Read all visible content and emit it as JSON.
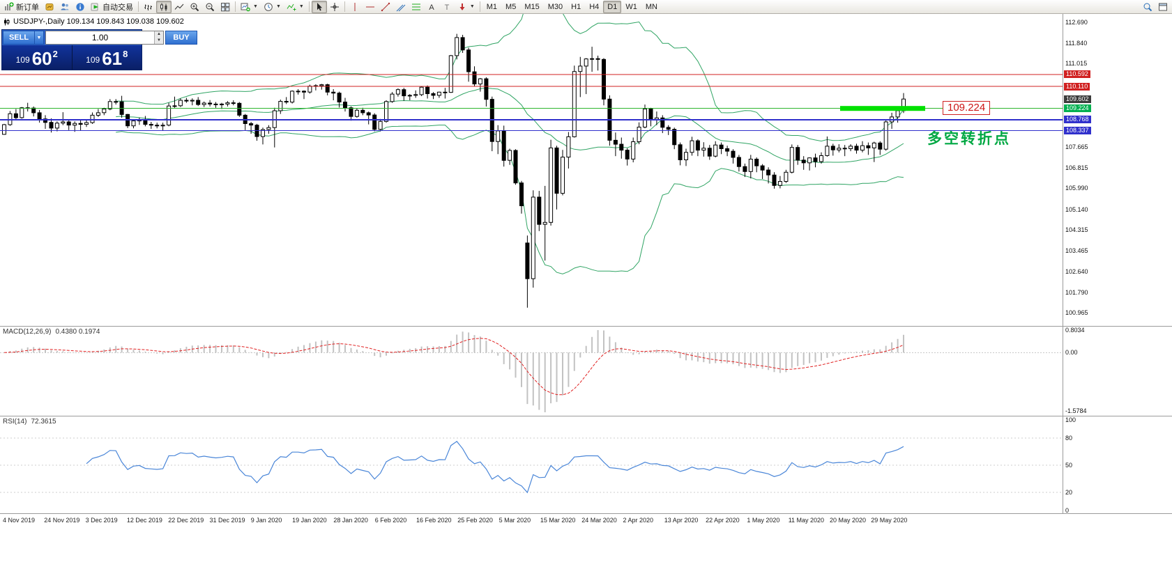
{
  "toolbar": {
    "new_order_label": "新订单",
    "autotrade_label": "自动交易",
    "timeframes": [
      "M1",
      "M5",
      "M15",
      "M30",
      "H1",
      "H4",
      "D1",
      "W1",
      "MN"
    ],
    "active_timeframe": "D1"
  },
  "symbol_bar": {
    "text": "USDJPY-,Daily 109.134 109.843 109.038 109.602"
  },
  "trade_panel": {
    "sell_label": "SELL",
    "buy_label": "BUY",
    "volume": "1.00",
    "sell_price_small": "109",
    "sell_price_big": "60",
    "sell_price_sup": "2",
    "buy_price_small": "109",
    "buy_price_big": "61",
    "buy_price_sup": "8"
  },
  "price_scale": {
    "ticks": [
      "112.690",
      "111.840",
      "111.015",
      "107.665",
      "106.815",
      "105.990",
      "105.140",
      "104.315",
      "103.465",
      "102.640",
      "101.790",
      "100.965"
    ],
    "tags": [
      {
        "text": "110.592",
        "color": "#d02020"
      },
      {
        "text": "110.110",
        "color": "#d02020"
      },
      {
        "text": "109.602",
        "color": "#3c3c3c"
      },
      {
        "text": "109.224",
        "color": "#00b050"
      },
      {
        "text": "108.768",
        "color": "#3030cc"
      },
      {
        "text": "108.337",
        "color": "#3030cc"
      }
    ]
  },
  "hlines": [
    {
      "price": 110.592,
      "color": "#d02020",
      "width": 1
    },
    {
      "price": 110.11,
      "color": "#d02020",
      "width": 1
    },
    {
      "price": 109.224,
      "color": "#2db52d",
      "width": 1
    },
    {
      "price": 108.768,
      "color": "#3030cc",
      "width": 2
    },
    {
      "price": 108.337,
      "color": "#3030cc",
      "width": 1
    }
  ],
  "annotations": {
    "segment_price": 109.224,
    "segment_color": "#00e100",
    "price_label": "109.224",
    "note": "多空转折点"
  },
  "indicators": {
    "macd": {
      "label": "MACD(12,26,9)",
      "values": "0.4380 0.1974",
      "scale_top": "0.8034",
      "scale_zero": "0.00",
      "scale_bottom": "-1.5784"
    },
    "rsi": {
      "label": "RSI(14)",
      "value": "72.3615",
      "scale": [
        "100",
        "80",
        "50",
        "20",
        "0"
      ]
    }
  },
  "time_axis": {
    "labels": [
      "4 Nov 2019",
      "24 Nov 2019",
      "3 Dec 2019",
      "12 Dec 2019",
      "22 Dec 2019",
      "31 Dec 2019",
      "9 Jan 2020",
      "19 Jan 2020",
      "28 Jan 2020",
      "6 Feb 2020",
      "16 Feb 2020",
      "25 Feb 2020",
      "5 Mar 2020",
      "15 Mar 2020",
      "24 Mar 2020",
      "2 Apr 2020",
      "13 Apr 2020",
      "22 Apr 2020",
      "1 May 2020",
      "11 May 2020",
      "20 May 2020",
      "29 May 2020"
    ]
  },
  "chart_data": {
    "type": "candlestick",
    "symbol": "USDJPY-",
    "timeframe": "Daily",
    "overlays": {
      "bollinger_period": 20,
      "bollinger_deviation": 2
    },
    "sub_indicators": [
      "MACD(12,26,9)",
      "RSI(14)"
    ],
    "ohlc": [
      [
        108.18,
        108.6,
        108.16,
        108.57
      ],
      [
        108.57,
        109.12,
        108.52,
        109.01
      ],
      [
        109.01,
        109.2,
        108.78,
        108.85
      ],
      [
        108.85,
        109.28,
        108.81,
        109.25
      ],
      [
        109.25,
        109.45,
        109.1,
        109.24
      ],
      [
        109.24,
        109.3,
        108.9,
        109.05
      ],
      [
        109.05,
        109.16,
        108.65,
        108.8
      ],
      [
        108.8,
        108.95,
        108.4,
        108.66
      ],
      [
        108.66,
        108.82,
        108.25,
        108.43
      ],
      [
        108.43,
        108.7,
        108.3,
        108.63
      ],
      [
        108.63,
        109.07,
        108.55,
        108.68
      ],
      [
        108.68,
        108.75,
        108.35,
        108.55
      ],
      [
        108.55,
        108.7,
        108.28,
        108.62
      ],
      [
        108.62,
        108.78,
        108.33,
        108.58
      ],
      [
        108.58,
        108.75,
        108.48,
        108.65
      ],
      [
        108.65,
        109.06,
        108.6,
        108.95
      ],
      [
        108.95,
        109.2,
        108.88,
        109.05
      ],
      [
        109.05,
        109.25,
        108.95,
        109.2
      ],
      [
        109.2,
        109.6,
        109.15,
        109.5
      ],
      [
        109.5,
        109.6,
        109.38,
        109.49
      ],
      [
        109.49,
        109.73,
        108.85,
        108.98
      ],
      [
        108.98,
        109.0,
        108.43,
        108.52
      ],
      [
        108.52,
        108.75,
        108.42,
        108.72
      ],
      [
        108.72,
        108.85,
        108.56,
        108.76
      ],
      [
        108.76,
        108.92,
        108.5,
        108.58
      ],
      [
        108.58,
        108.68,
        108.4,
        108.55
      ],
      [
        108.55,
        108.65,
        108.42,
        108.52
      ],
      [
        108.52,
        108.65,
        108.32,
        108.55
      ],
      [
        108.55,
        109.45,
        108.5,
        109.32
      ],
      [
        109.32,
        109.7,
        109.25,
        109.33
      ],
      [
        109.33,
        109.63,
        109.28,
        109.55
      ],
      [
        109.55,
        109.65,
        109.45,
        109.52
      ],
      [
        109.52,
        109.63,
        109.35,
        109.55
      ],
      [
        109.55,
        109.68,
        109.32,
        109.38
      ],
      [
        109.38,
        109.5,
        109.28,
        109.44
      ],
      [
        109.44,
        109.56,
        109.3,
        109.4
      ],
      [
        109.4,
        109.48,
        109.25,
        109.37
      ],
      [
        109.37,
        109.45,
        109.2,
        109.4
      ],
      [
        109.4,
        109.52,
        109.3,
        109.45
      ],
      [
        109.45,
        109.55,
        109.35,
        109.43
      ],
      [
        109.43,
        109.48,
        108.88,
        108.95
      ],
      [
        108.95,
        109.0,
        108.35,
        108.61
      ],
      [
        108.61,
        108.68,
        108.2,
        108.55
      ],
      [
        108.55,
        108.6,
        107.92,
        108.09
      ],
      [
        108.09,
        108.45,
        107.77,
        108.37
      ],
      [
        108.37,
        108.55,
        108.2,
        108.45
      ],
      [
        108.45,
        109.25,
        107.65,
        109.13
      ],
      [
        109.13,
        109.58,
        109.0,
        109.51
      ],
      [
        109.51,
        109.68,
        109.4,
        109.48
      ],
      [
        109.48,
        109.95,
        109.42,
        109.92
      ],
      [
        109.92,
        110.0,
        109.78,
        109.92
      ],
      [
        109.92,
        109.95,
        109.6,
        109.88
      ],
      [
        109.88,
        110.18,
        109.82,
        110.12
      ],
      [
        110.12,
        110.2,
        109.95,
        110.14
      ],
      [
        110.14,
        110.21,
        109.98,
        110.18
      ],
      [
        110.18,
        110.22,
        109.75,
        109.88
      ],
      [
        109.88,
        110.0,
        109.55,
        109.84
      ],
      [
        109.84,
        109.9,
        109.26,
        109.48
      ],
      [
        109.48,
        109.65,
        109.1,
        109.25
      ],
      [
        109.25,
        109.3,
        108.73,
        108.9
      ],
      [
        108.9,
        109.22,
        108.85,
        109.15
      ],
      [
        109.15,
        109.25,
        108.95,
        109.05
      ],
      [
        109.05,
        109.1,
        108.58,
        108.96
      ],
      [
        108.96,
        109.03,
        108.3,
        108.38
      ],
      [
        108.38,
        108.8,
        108.3,
        108.7
      ],
      [
        108.7,
        109.55,
        108.65,
        109.5
      ],
      [
        109.5,
        109.88,
        109.45,
        109.8
      ],
      [
        109.8,
        110.03,
        109.7,
        109.98
      ],
      [
        109.98,
        110.05,
        109.53,
        109.73
      ],
      [
        109.73,
        109.8,
        109.55,
        109.75
      ],
      [
        109.75,
        109.95,
        109.65,
        109.78
      ],
      [
        109.78,
        110.12,
        109.72,
        110.08
      ],
      [
        110.08,
        110.15,
        109.62,
        109.82
      ],
      [
        109.82,
        109.88,
        109.6,
        109.75
      ],
      [
        109.75,
        109.9,
        109.65,
        109.88
      ],
      [
        109.88,
        110.05,
        109.62,
        109.87
      ],
      [
        109.87,
        111.38,
        109.85,
        111.35
      ],
      [
        111.35,
        112.23,
        111.2,
        112.08
      ],
      [
        112.08,
        112.19,
        111.46,
        111.58
      ],
      [
        111.58,
        111.67,
        110.3,
        110.7
      ],
      [
        110.7,
        110.92,
        110.1,
        110.21
      ],
      [
        110.21,
        110.45,
        109.9,
        110.42
      ],
      [
        110.42,
        110.48,
        109.3,
        109.59
      ],
      [
        109.59,
        109.7,
        107.5,
        107.89
      ],
      [
        107.89,
        108.55,
        107.38,
        108.32
      ],
      [
        108.32,
        108.53,
        106.88,
        107.13
      ],
      [
        107.13,
        107.6,
        106.95,
        107.53
      ],
      [
        107.53,
        107.58,
        106.15,
        106.22
      ],
      [
        106.22,
        106.3,
        104.98,
        105.3
      ],
      [
        103.8,
        104.1,
        101.19,
        102.36
      ],
      [
        102.36,
        105.92,
        102.0,
        105.65
      ],
      [
        105.65,
        105.9,
        104.28,
        104.55
      ],
      [
        104.55,
        106.1,
        103.09,
        104.63
      ],
      [
        104.63,
        107.96,
        104.5,
        107.63
      ],
      [
        107.63,
        107.72,
        105.15,
        105.8
      ],
      [
        105.8,
        107.55,
        105.72,
        107.26
      ],
      [
        107.26,
        108.27,
        106.8,
        108.08
      ],
      [
        108.08,
        110.95,
        108.05,
        110.71
      ],
      [
        110.71,
        111.3,
        109.68,
        110.93
      ],
      [
        110.93,
        111.25,
        109.8,
        111.22
      ],
      [
        111.22,
        111.71,
        110.7,
        111.23
      ],
      [
        111.23,
        111.35,
        110.75,
        111.2
      ],
      [
        111.2,
        111.25,
        109.35,
        109.6
      ],
      [
        109.6,
        109.75,
        107.72,
        107.94
      ],
      [
        107.94,
        108.25,
        107.3,
        107.78
      ],
      [
        107.78,
        108.05,
        107.2,
        107.54
      ],
      [
        107.54,
        107.62,
        106.92,
        107.18
      ],
      [
        107.18,
        108.05,
        107.05,
        107.88
      ],
      [
        107.88,
        108.66,
        107.78,
        108.47
      ],
      [
        108.47,
        109.38,
        108.42,
        109.2
      ],
      [
        109.2,
        109.25,
        108.5,
        108.78
      ],
      [
        108.78,
        109.1,
        108.55,
        108.84
      ],
      [
        108.84,
        108.95,
        108.23,
        108.46
      ],
      [
        108.46,
        108.55,
        108.15,
        108.38
      ],
      [
        108.38,
        108.45,
        107.58,
        107.76
      ],
      [
        107.76,
        107.85,
        106.93,
        107.15
      ],
      [
        107.15,
        107.6,
        106.9,
        107.45
      ],
      [
        107.45,
        108.08,
        107.32,
        107.92
      ],
      [
        107.92,
        107.98,
        107.3,
        107.54
      ],
      [
        107.54,
        107.86,
        107.28,
        107.62
      ],
      [
        107.62,
        107.75,
        107.15,
        107.3
      ],
      [
        107.3,
        107.9,
        107.25,
        107.75
      ],
      [
        107.75,
        107.85,
        107.38,
        107.6
      ],
      [
        107.6,
        107.72,
        107.3,
        107.5
      ],
      [
        107.5,
        107.58,
        107.0,
        107.25
      ],
      [
        107.25,
        107.35,
        106.68,
        106.88
      ],
      [
        106.88,
        107.0,
        106.46,
        106.68
      ],
      [
        106.68,
        107.35,
        106.4,
        107.18
      ],
      [
        107.18,
        107.25,
        106.65,
        106.91
      ],
      [
        106.91,
        106.98,
        106.38,
        106.74
      ],
      [
        106.74,
        106.85,
        106.2,
        106.54
      ],
      [
        106.54,
        106.65,
        105.99,
        106.12
      ],
      [
        106.12,
        106.5,
        106.0,
        106.28
      ],
      [
        106.28,
        106.75,
        106.22,
        106.65
      ],
      [
        106.65,
        107.77,
        106.6,
        107.65
      ],
      [
        107.65,
        107.75,
        106.95,
        107.14
      ],
      [
        107.14,
        107.3,
        106.75,
        107.03
      ],
      [
        107.03,
        107.25,
        106.72,
        107.23
      ],
      [
        107.23,
        107.4,
        106.85,
        107.08
      ],
      [
        107.08,
        107.45,
        107.0,
        107.32
      ],
      [
        107.32,
        108.09,
        107.28,
        107.7
      ],
      [
        107.7,
        107.8,
        107.32,
        107.55
      ],
      [
        107.55,
        107.78,
        107.45,
        107.62
      ],
      [
        107.62,
        107.75,
        107.3,
        107.6
      ],
      [
        107.6,
        107.78,
        107.5,
        107.7
      ],
      [
        107.7,
        107.8,
        107.4,
        107.54
      ],
      [
        107.54,
        107.9,
        107.45,
        107.72
      ],
      [
        107.72,
        107.85,
        107.35,
        107.63
      ],
      [
        107.63,
        107.88,
        107.06,
        107.83
      ],
      [
        107.83,
        107.9,
        107.35,
        107.58
      ],
      [
        107.58,
        108.75,
        107.52,
        108.68
      ],
      [
        108.68,
        109.05,
        108.4,
        108.88
      ],
      [
        108.88,
        109.16,
        108.65,
        109.13
      ],
      [
        109.134,
        109.843,
        109.038,
        109.602
      ]
    ]
  }
}
